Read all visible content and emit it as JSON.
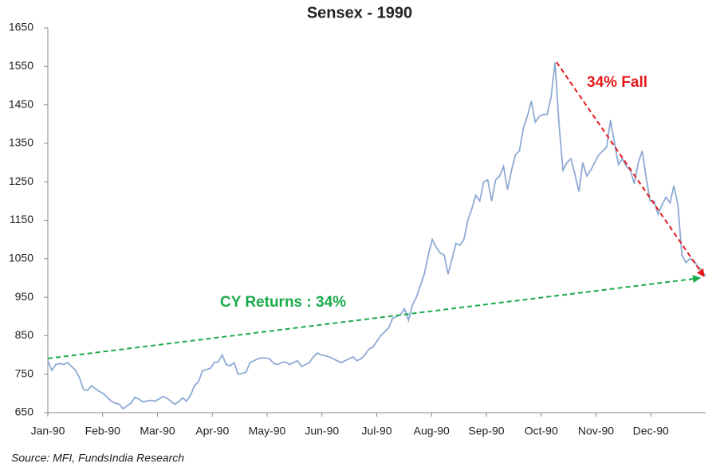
{
  "chart_data": {
    "type": "line",
    "title": "Sensex - 1990",
    "source": "Source: MFI, FundsIndia Research",
    "annotations": [
      "34% Fall",
      "CY Returns : 34%"
    ],
    "x_labels": [
      "Jan-90",
      "Feb-90",
      "Mar-90",
      "Apr-90",
      "May-90",
      "Jun-90",
      "Jul-90",
      "Aug-90",
      "Sep-90",
      "Oct-90",
      "Nov-90",
      "Dec-90"
    ],
    "ylim": [
      650,
      1650
    ],
    "yticks": [
      650,
      750,
      850,
      950,
      1050,
      1150,
      1250,
      1350,
      1450,
      1550,
      1650
    ],
    "series": [
      {
        "color": "#8eaad4",
        "values": [
          785,
          760,
          775,
          778,
          775,
          780,
          770,
          760,
          740,
          710,
          708,
          720,
          712,
          705,
          700,
          690,
          680,
          675,
          672,
          660,
          668,
          675,
          690,
          685,
          678,
          680,
          682,
          680,
          685,
          692,
          688,
          680,
          672,
          678,
          688,
          680,
          695,
          720,
          730,
          758,
          762,
          765,
          780,
          782,
          800,
          775,
          772,
          780,
          750,
          752,
          755,
          780,
          785,
          790,
          792,
          792,
          790,
          778,
          775,
          780,
          782,
          775,
          780,
          785,
          770,
          775,
          780,
          795,
          805,
          800,
          798,
          795,
          790,
          785,
          780,
          785,
          790,
          795,
          785,
          790,
          800,
          815,
          820,
          835,
          850,
          860,
          870,
          895,
          900,
          905,
          920,
          890,
          930,
          950,
          980,
          1010,
          1060,
          1100,
          1080,
          1065,
          1060,
          1010,
          1050,
          1090,
          1085,
          1100,
          1150,
          1180,
          1215,
          1200,
          1250,
          1255,
          1200,
          1255,
          1265,
          1290,
          1230,
          1280,
          1320,
          1330,
          1390,
          1420,
          1460,
          1405,
          1420,
          1425,
          1425,
          1470,
          1560,
          1400,
          1280,
          1300,
          1310,
          1270,
          1225,
          1300,
          1265,
          1280,
          1300,
          1320,
          1330,
          1340,
          1410,
          1350,
          1295,
          1310,
          1290,
          1280,
          1245,
          1300,
          1330,
          1260,
          1200,
          1200,
          1165,
          1190,
          1210,
          1195,
          1240,
          1190,
          1060,
          1040,
          1050,
          1045,
          1030,
          1020,
          1005
        ]
      }
    ]
  }
}
